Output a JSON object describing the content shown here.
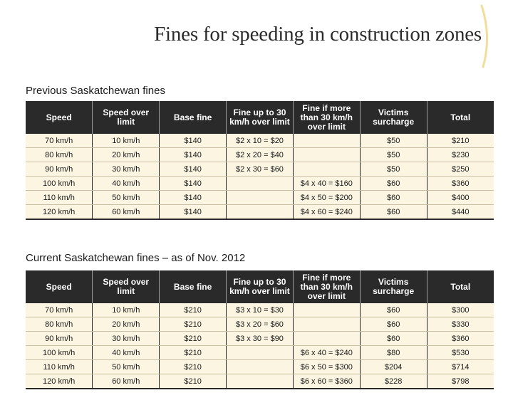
{
  "title": "Fines for speeding in construction zones",
  "headers": [
    "Speed",
    "Speed over limit",
    "Base fine",
    "Fine up to 30 km/h over limit",
    "Fine if more than 30 km/h over limit",
    "Victims surcharge",
    "Total"
  ],
  "previous": {
    "heading": "Previous Saskatchewan fines",
    "rows": [
      [
        "70 km/h",
        "10 km/h",
        "$140",
        "$2 x 10 = $20",
        "",
        "$50",
        "$210"
      ],
      [
        "80 km/h",
        "20 km/h",
        "$140",
        "$2 x 20 = $40",
        "",
        "$50",
        "$230"
      ],
      [
        "90 km/h",
        "30 km/h",
        "$140",
        "$2 x 30 = $60",
        "",
        "$50",
        "$250"
      ],
      [
        "100 km/h",
        "40 km/h",
        "$140",
        "",
        "$4 x 40 = $160",
        "$60",
        "$360"
      ],
      [
        "110 km/h",
        "50 km/h",
        "$140",
        "",
        "$4 x 50 = $200",
        "$60",
        "$400"
      ],
      [
        "120 km/h",
        "60 km/h",
        "$140",
        "",
        "$4 x 60 = $240",
        "$60",
        "$440"
      ]
    ]
  },
  "current": {
    "heading": "Current Saskatchewan fines – as of Nov. 2012",
    "rows": [
      [
        "70 km/h",
        "10 km/h",
        "$210",
        "$3 x 10 = $30",
        "",
        "$60",
        "$300"
      ],
      [
        "80 km/h",
        "20 km/h",
        "$210",
        "$3 x 20 = $60",
        "",
        "$60",
        "$330"
      ],
      [
        "90 km/h",
        "30 km/h",
        "$210",
        "$3 x 30 = $90",
        "",
        "$60",
        "$360"
      ],
      [
        "100 km/h",
        "40 km/h",
        "$210",
        "",
        "$6 x 40 = $240",
        "$80",
        "$530"
      ],
      [
        "110 km/h",
        "50 km/h",
        "$210",
        "",
        "$6 x 50 = $300",
        "$204",
        "$714"
      ],
      [
        "120 km/h",
        "60 km/h",
        "$210",
        "",
        "$6 x 60 = $360",
        "$228",
        "$798"
      ]
    ]
  },
  "colors": {
    "header_bg": "#2a2a2a",
    "row_bg": "#fbf5e1",
    "accent_curve": "#f3dd9a"
  }
}
